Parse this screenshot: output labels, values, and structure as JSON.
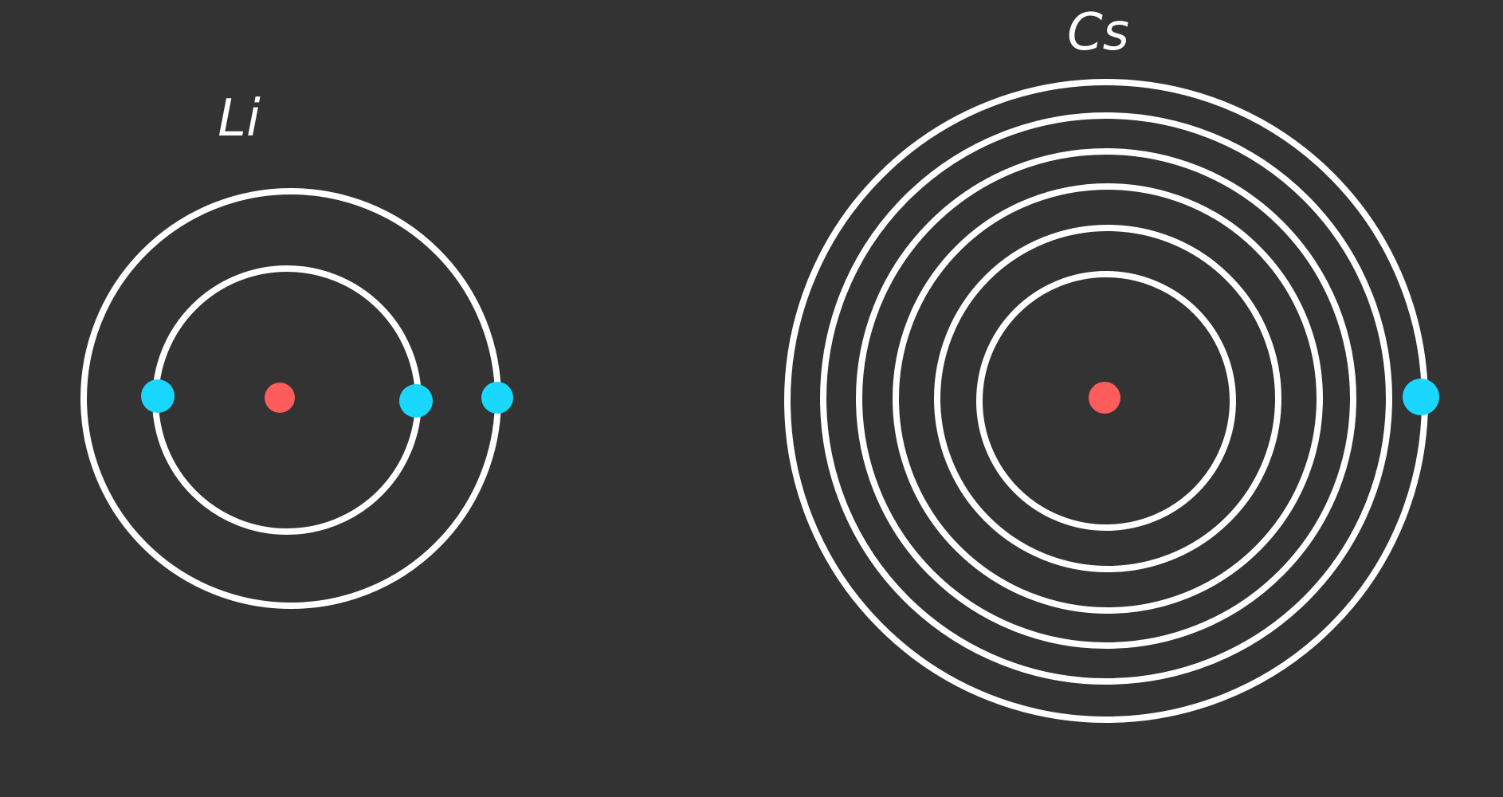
{
  "colors": {
    "background": "#333333",
    "shell": "#ffffff",
    "nucleus": "#ff5c5c",
    "electron": "#19d7ff"
  },
  "atoms": [
    {
      "id": "li",
      "label": "Li",
      "shell_count": 2,
      "electrons_shown": 3
    },
    {
      "id": "cs",
      "label": "Cs",
      "shell_count": 6,
      "electrons_shown": 1
    }
  ]
}
